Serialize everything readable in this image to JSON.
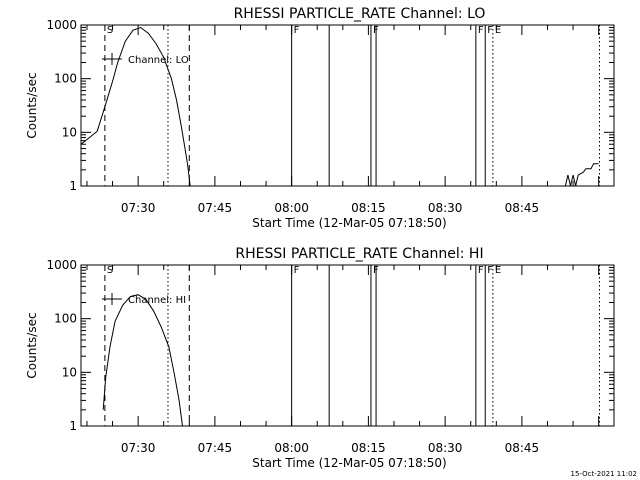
{
  "chart_data": [
    {
      "type": "line",
      "title": "RHESSI PARTICLE_RATE Channel: LO",
      "xlabel": "Start Time (12-Mar-05 07:18:50)",
      "ylabel": "Counts/sec",
      "yscale": "log",
      "ylim": [
        1,
        1000
      ],
      "ytick_labels": [
        "1",
        "10",
        "100",
        "1000"
      ],
      "x_range_minutes": [
        "07:18:50",
        "09:03:00"
      ],
      "xtick_labels": [
        "07:30",
        "07:45",
        "08:00",
        "08:15",
        "08:30",
        "08:45"
      ],
      "legend": "Channel: LO",
      "series": [
        {
          "name": "Channel: LO",
          "segments": [
            [
              [
                "07:18:50",
                6
              ],
              [
                "07:20:30",
                8
              ],
              [
                "07:22:00",
                10.5
              ],
              [
                "07:23:30",
                30
              ],
              [
                "07:25:00",
                90
              ],
              [
                "07:26:00",
                200
              ],
              [
                "07:27:30",
                500
              ],
              [
                "07:29:00",
                800
              ],
              [
                "07:30:30",
                900
              ],
              [
                "07:32:00",
                700
              ],
              [
                "07:33:30",
                450
              ],
              [
                "07:35:00",
                250
              ],
              [
                "07:36:30",
                100
              ],
              [
                "07:37:30",
                40
              ],
              [
                "07:38:30",
                12
              ],
              [
                "07:39:10",
                5
              ],
              [
                "07:39:40",
                2.5
              ],
              [
                "07:40:10",
                1
              ]
            ],
            [
              [
                "08:53:30",
                1
              ],
              [
                "08:54:00",
                1.6
              ],
              [
                "08:54:30",
                1
              ],
              [
                "08:55:00",
                1.6
              ],
              [
                "08:55:30",
                1
              ],
              [
                "08:56:00",
                1.6
              ],
              [
                "08:57:00",
                1.8
              ],
              [
                "08:57:30",
                2.1
              ],
              [
                "08:58:30",
                2.1
              ],
              [
                "08:59:00",
                2.6
              ],
              [
                "09:00:00",
                2.6
              ]
            ]
          ]
        }
      ],
      "markers": [
        {
          "time": "07:23:30",
          "style": "dashed",
          "label": "S"
        },
        {
          "time": "07:35:50",
          "style": "dotted",
          "label": ""
        },
        {
          "time": "07:40:00",
          "style": "dashed",
          "label": ""
        },
        {
          "time": "08:00:00",
          "style": "solid",
          "label": "F"
        },
        {
          "time": "08:07:20",
          "style": "solid",
          "label": ""
        },
        {
          "time": "08:15:30",
          "style": "solid",
          "label": "F"
        },
        {
          "time": "08:16:30",
          "style": "solid",
          "label": ""
        },
        {
          "time": "08:36:00",
          "style": "solid",
          "label": "F"
        },
        {
          "time": "08:37:50",
          "style": "solid",
          "label": "F"
        },
        {
          "time": "08:39:20",
          "style": "dotted",
          "label": "E"
        },
        {
          "time": "09:00:10",
          "style": "dotted",
          "label": ""
        }
      ]
    },
    {
      "type": "line",
      "title": "RHESSI PARTICLE_RATE Channel: HI",
      "xlabel": "Start Time (12-Mar-05 07:18:50)",
      "ylabel": "Counts/sec",
      "yscale": "log",
      "ylim": [
        1,
        1000
      ],
      "ytick_labels": [
        "1",
        "10",
        "100",
        "1000"
      ],
      "x_range_minutes": [
        "07:18:50",
        "09:03:00"
      ],
      "xtick_labels": [
        "07:30",
        "07:45",
        "08:00",
        "08:15",
        "08:30",
        "08:45"
      ],
      "legend": "Channel: HI",
      "series": [
        {
          "name": "Channel: HI",
          "segments": [
            [
              [
                "07:23:10",
                2
              ],
              [
                "07:23:40",
                8
              ],
              [
                "07:24:30",
                30
              ],
              [
                "07:25:30",
                90
              ],
              [
                "07:27:00",
                180
              ],
              [
                "07:28:30",
                260
              ],
              [
                "07:30:00",
                280
              ],
              [
                "07:31:30",
                230
              ],
              [
                "07:33:00",
                140
              ],
              [
                "07:34:30",
                70
              ],
              [
                "07:36:00",
                30
              ],
              [
                "07:37:00",
                10
              ],
              [
                "07:38:00",
                3
              ],
              [
                "07:38:40",
                1
              ]
            ]
          ]
        }
      ],
      "markers": [
        {
          "time": "07:23:30",
          "style": "dashed",
          "label": "S"
        },
        {
          "time": "07:35:50",
          "style": "dotted",
          "label": ""
        },
        {
          "time": "07:40:00",
          "style": "dashed",
          "label": ""
        },
        {
          "time": "08:00:00",
          "style": "solid",
          "label": "F"
        },
        {
          "time": "08:07:20",
          "style": "solid",
          "label": ""
        },
        {
          "time": "08:15:30",
          "style": "solid",
          "label": "F"
        },
        {
          "time": "08:16:30",
          "style": "solid",
          "label": ""
        },
        {
          "time": "08:36:00",
          "style": "solid",
          "label": "F"
        },
        {
          "time": "08:37:50",
          "style": "solid",
          "label": "F"
        },
        {
          "time": "08:39:20",
          "style": "dotted",
          "label": "E"
        },
        {
          "time": "09:00:10",
          "style": "dotted",
          "label": ""
        }
      ]
    }
  ],
  "footer": {
    "timestamp": "15-Oct-2021 11:02"
  }
}
